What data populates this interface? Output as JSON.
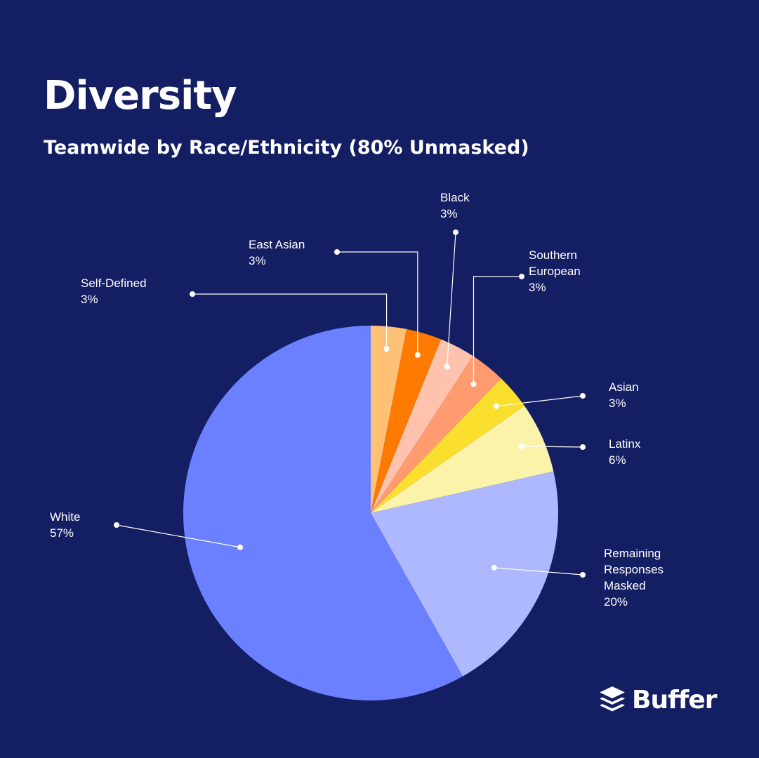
{
  "chart_data": {
    "type": "pie",
    "title": "Diversity",
    "subtitle": "Teamwide by Race/Ethnicity (80% Unmasked)",
    "start_angle_deg": 0,
    "direction": "clockwise",
    "slices": [
      {
        "key": "self_defined",
        "lines": [
          "Self-Defined"
        ],
        "value_label": "3%",
        "value": 3,
        "color": "#fec075"
      },
      {
        "key": "east_asian",
        "lines": [
          "East Asian"
        ],
        "value_label": "3%",
        "value": 3,
        "color": "#ff7a00"
      },
      {
        "key": "black",
        "lines": [
          "Black"
        ],
        "value_label": "3%",
        "value": 3,
        "color": "#ffc3ad"
      },
      {
        "key": "southern_european",
        "lines": [
          "Southern",
          "European"
        ],
        "value_label": "3%",
        "value": 3,
        "color": "#ff9b6e"
      },
      {
        "key": "asian",
        "lines": [
          "Asian"
        ],
        "value_label": "3%",
        "value": 3,
        "color": "#fbdf2f"
      },
      {
        "key": "latinx",
        "lines": [
          "Latinx"
        ],
        "value_label": "6%",
        "value": 6,
        "color": "#fcf3ab"
      },
      {
        "key": "remaining",
        "lines": [
          "Remaining",
          "Responses",
          "Masked"
        ],
        "value_label": "20%",
        "value": 20,
        "color": "#aeb8ff"
      },
      {
        "key": "white",
        "lines": [
          "White"
        ],
        "value_label": "57%",
        "value": 57,
        "color": "#6b80ff"
      }
    ]
  },
  "logo": {
    "text": "Buffer",
    "icon": "buffer-stack-icon"
  }
}
